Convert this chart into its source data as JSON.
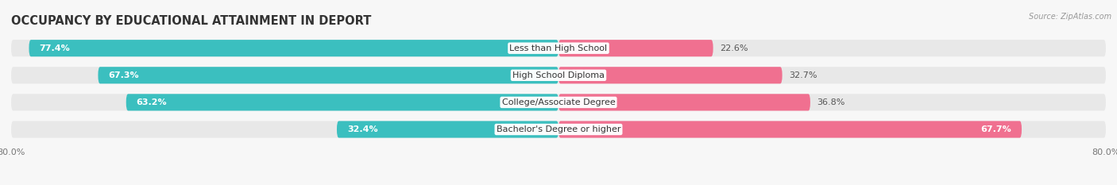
{
  "title": "OCCUPANCY BY EDUCATIONAL ATTAINMENT IN DEPORT",
  "source": "Source: ZipAtlas.com",
  "categories": [
    "Less than High School",
    "High School Diploma",
    "College/Associate Degree",
    "Bachelor's Degree or higher"
  ],
  "owner_pct": [
    77.4,
    67.3,
    63.2,
    32.4
  ],
  "renter_pct": [
    22.6,
    32.7,
    36.8,
    67.7
  ],
  "owner_color": "#3BBFBF",
  "renter_color": "#F07090",
  "axis_min": -80.0,
  "axis_max": 80.0,
  "axis_label_left": "80.0%",
  "axis_label_right": "80.0%",
  "bar_height": 0.62,
  "row_bg_color": "#e8e8e8",
  "fig_bg_color": "#f7f7f7",
  "title_fontsize": 10.5,
  "label_fontsize": 8,
  "tick_fontsize": 8,
  "cat_fontsize": 8
}
